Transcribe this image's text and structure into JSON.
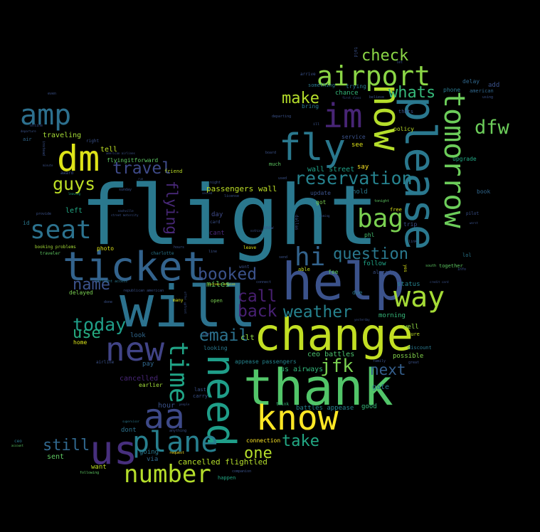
{
  "words": [
    {
      "text": "flight",
      "color": "#2a788e"
    },
    {
      "text": "will",
      "color": "#2c728e"
    },
    {
      "text": "thank",
      "color": "#52c569"
    },
    {
      "text": "change",
      "color": "#c2df23"
    },
    {
      "text": "help",
      "color": "#3b528b"
    },
    {
      "text": "ticket",
      "color": "#33638d"
    },
    {
      "text": "please",
      "color": "#2a788e"
    },
    {
      "text": "now",
      "color": "#b5de2b"
    },
    {
      "text": "need",
      "color": "#1f9e89"
    },
    {
      "text": "tomorrow",
      "color": "#6ccd5a"
    },
    {
      "text": "us",
      "color": "#472f7d"
    },
    {
      "text": "know",
      "color": "#fde725"
    },
    {
      "text": "aa",
      "color": "#3e4a89"
    },
    {
      "text": "new",
      "color": "#414487"
    },
    {
      "text": "dm",
      "color": "#dde318"
    },
    {
      "text": "fly",
      "color": "#2a788e"
    },
    {
      "text": "plane",
      "color": "#277f8e"
    },
    {
      "text": "number",
      "color": "#b5de2b"
    },
    {
      "text": "airport",
      "color": "#8bd646"
    },
    {
      "text": "im",
      "color": "#482576"
    },
    {
      "text": "amp",
      "color": "#2d708e"
    },
    {
      "text": "seat",
      "color": "#2c728e"
    },
    {
      "text": "time",
      "color": "#20a486"
    },
    {
      "text": "way",
      "color": "#a5db36"
    },
    {
      "text": "bag",
      "color": "#7ad151"
    },
    {
      "text": "hi",
      "color": "#33638d"
    },
    {
      "text": "reservation",
      "color": "#26828e"
    },
    {
      "text": "dfw",
      "color": "#6ccd5a"
    },
    {
      "text": "travel",
      "color": "#3e4a89"
    },
    {
      "text": "check",
      "color": "#8bd646"
    },
    {
      "text": "make",
      "color": "#b5de2b"
    },
    {
      "text": "whats",
      "color": "#35b779"
    },
    {
      "text": "guys",
      "color": "#bddf26"
    },
    {
      "text": "booked",
      "color": "#3b528b"
    },
    {
      "text": "question",
      "color": "#2a788e"
    },
    {
      "text": "name",
      "color": "#3b528b"
    },
    {
      "text": "today",
      "color": "#1f9e89"
    },
    {
      "text": "weather",
      "color": "#26828e"
    },
    {
      "text": "call",
      "color": "#481f70"
    },
    {
      "text": "back",
      "color": "#482173"
    },
    {
      "text": "email",
      "color": "#2c728e"
    },
    {
      "text": "jfk",
      "color": "#7ad151"
    },
    {
      "text": "next",
      "color": "#355f8d"
    },
    {
      "text": "use",
      "color": "#27ad81"
    },
    {
      "text": "still",
      "color": "#31688e"
    },
    {
      "text": "one",
      "color": "#b5de2b"
    },
    {
      "text": "take",
      "color": "#22a884"
    },
    {
      "text": "flying",
      "color": "#482878"
    },
    {
      "text": "passengers wall",
      "color": "#bddf26"
    },
    {
      "text": "wall street",
      "color": "#1fa187"
    },
    {
      "text": "cancelled flightled",
      "color": "#b5de2b"
    },
    {
      "text": "miles",
      "color": "#5ec962"
    },
    {
      "text": "clt",
      "color": "#90d743"
    },
    {
      "text": "us airways",
      "color": "#32b67a"
    },
    {
      "text": "ceo battles",
      "color": "#4ac16d"
    },
    {
      "text": "appease passengers",
      "color": "#25848e"
    },
    {
      "text": "battles appease",
      "color": "#26828e"
    },
    {
      "text": "cancelled",
      "color": "#482677"
    },
    {
      "text": "hour",
      "color": "#3b528b"
    },
    {
      "text": "pay",
      "color": "#31688e"
    },
    {
      "text": "left",
      "color": "#22a884"
    },
    {
      "text": "traveling",
      "color": "#a5db36"
    },
    {
      "text": "tell",
      "color": "#bddf26"
    },
    {
      "text": "flyingitforward",
      "color": "#5ec962"
    },
    {
      "text": "photo",
      "color": "#dde318"
    },
    {
      "text": "delayed",
      "color": "#7ad151"
    },
    {
      "text": "look",
      "color": "#31688e"
    },
    {
      "text": "home",
      "color": "#d8e219"
    },
    {
      "text": "earlier",
      "color": "#a0da39"
    },
    {
      "text": "dont",
      "color": "#2c728e"
    },
    {
      "text": "going",
      "color": "#2a788e"
    },
    {
      "text": "sent",
      "color": "#5ec962"
    },
    {
      "text": "want",
      "color": "#bddf26"
    },
    {
      "text": "via",
      "color": "#31688e"
    },
    {
      "text": "happen",
      "color": "#22a884"
    },
    {
      "text": "connection",
      "color": "#fde725"
    },
    {
      "text": "good",
      "color": "#35b779"
    },
    {
      "text": "gate",
      "color": "#2a788e"
    },
    {
      "text": "possible",
      "color": "#84d44b"
    },
    {
      "text": "sure",
      "color": "#bddf26"
    },
    {
      "text": "well",
      "color": "#90d743"
    },
    {
      "text": "morning",
      "color": "#35b779"
    },
    {
      "text": "due",
      "color": "#2a788e"
    },
    {
      "text": "status",
      "color": "#26828e"
    },
    {
      "text": "follow",
      "color": "#20a486"
    },
    {
      "text": "already",
      "color": "#3b528b"
    },
    {
      "text": "phl",
      "color": "#44bf70"
    },
    {
      "text": "free",
      "color": "#dde318"
    },
    {
      "text": "trip",
      "color": "#3b528b"
    },
    {
      "text": "hold",
      "color": "#2a788e"
    },
    {
      "text": "update",
      "color": "#3b528b"
    },
    {
      "text": "got",
      "color": "#7ad151"
    },
    {
      "text": "fee",
      "color": "#5ec962"
    },
    {
      "text": "able",
      "color": "#c2df23"
    },
    {
      "text": "policy",
      "color": "#bddf26"
    },
    {
      "text": "say",
      "color": "#fde725"
    },
    {
      "text": "see",
      "color": "#dde318"
    },
    {
      "text": "service",
      "color": "#3b528b"
    },
    {
      "text": "chance",
      "color": "#35b779"
    },
    {
      "text": "trying",
      "color": "#2a788e"
    },
    {
      "text": "something",
      "color": "#2a788e"
    },
    {
      "text": "bring",
      "color": "#2a788e"
    },
    {
      "text": "phone",
      "color": "#2a788e"
    },
    {
      "text": "delay",
      "color": "#31688e"
    },
    {
      "text": "add",
      "color": "#3b528b"
    },
    {
      "text": "american",
      "color": "#31688e"
    },
    {
      "text": "book",
      "color": "#31688e"
    },
    {
      "text": "upgrade",
      "color": "#22a884"
    },
    {
      "text": "together",
      "color": "#5ec962"
    },
    {
      "text": "discount",
      "color": "#2a788e"
    },
    {
      "text": "friend",
      "color": "#bddf26"
    },
    {
      "text": "night",
      "color": "#3b528b"
    },
    {
      "text": "license",
      "color": "#3b528b"
    },
    {
      "text": "day",
      "color": "#3e4a89"
    },
    {
      "text": "card",
      "color": "#3b528b"
    },
    {
      "text": "cant",
      "color": "#482878"
    },
    {
      "text": "open",
      "color": "#7ad151"
    },
    {
      "text": "looking",
      "color": "#2a788e"
    },
    {
      "text": "booking problems",
      "color": "#a5db36"
    },
    {
      "text": "traveler",
      "color": "#5ec962"
    },
    {
      "text": "inflight access",
      "color": "#2a788e"
    },
    {
      "text": "republican american",
      "color": "#3b528b"
    },
    {
      "text": "online",
      "color": "#3b528b"
    },
    {
      "text": "departure",
      "color": "#3b528b"
    },
    {
      "text": "air",
      "color": "#31688e"
    },
    {
      "text": "award",
      "color": "#3b528b"
    },
    {
      "text": "leaving",
      "color": "#22a884"
    },
    {
      "text": "provide",
      "color": "#3b528b"
    },
    {
      "text": "id",
      "color": "#2a788e"
    },
    {
      "text": "sunday",
      "color": "#3b528b"
    },
    {
      "text": "charlotte",
      "color": "#2a788e"
    },
    {
      "text": "leave",
      "color": "#dde318"
    },
    {
      "text": "much",
      "color": "#5ec962"
    },
    {
      "text": "departing",
      "color": "#3b528b"
    },
    {
      "text": "tonight",
      "color": "#5ec962"
    },
    {
      "text": "carry",
      "color": "#3b528b"
    },
    {
      "text": "last",
      "color": "#3b528b"
    },
    {
      "text": "airline",
      "color": "#3b528b"
    },
    {
      "text": "think",
      "color": "#35b779"
    },
    {
      "text": "supervisor",
      "color": "#2a788e"
    },
    {
      "text": "anything",
      "color": "#3b528b"
    },
    {
      "text": "request",
      "color": "#fde725"
    },
    {
      "text": "following",
      "color": "#5ec962"
    },
    {
      "text": "companion",
      "color": "#3b528b"
    },
    {
      "text": "ceo",
      "color": "#2a788e"
    },
    {
      "text": "account",
      "color": "#5ec962"
    },
    {
      "text": "customer service",
      "color": "#dde318"
    },
    {
      "text": "lol",
      "color": "#2a788e"
    },
    {
      "text": "info",
      "color": "#3b528b"
    },
    {
      "text": "credit card",
      "color": "#3b528b"
    },
    {
      "text": "south",
      "color": "#5ec962"
    },
    {
      "text": "yesterday",
      "color": "#3b528b"
    },
    {
      "text": "thats",
      "color": "#3b528b"
    },
    {
      "text": "believe",
      "color": "#3b528b"
    },
    {
      "text": "arrive",
      "color": "#3b528b"
    },
    {
      "text": "let",
      "color": "#3b528b"
    },
    {
      "text": "told",
      "color": "#3b528b"
    },
    {
      "text": "using",
      "color": "#3b528b"
    },
    {
      "text": "first class",
      "color": "#3b528b"
    },
    {
      "text": "instead",
      "color": "#3b528b"
    },
    {
      "text": "minute",
      "color": "#3b528b"
    },
    {
      "text": "right",
      "color": "#3b528b"
    },
    {
      "text": "even",
      "color": "#3b528b"
    },
    {
      "text": "board",
      "color": "#3b528b"
    },
    {
      "text": "used",
      "color": "#3b528b"
    },
    {
      "text": "pilot",
      "color": "#3b528b"
    },
    {
      "text": "dallas",
      "color": "#3b528b"
    },
    {
      "text": "people",
      "color": "#3b528b"
    },
    {
      "text": "send",
      "color": "#3b528b"
    },
    {
      "text": "great",
      "color": "#3b528b"
    },
    {
      "text": "family",
      "color": "#3b528b"
    },
    {
      "text": "sign",
      "color": "#3b528b"
    },
    {
      "text": "nashville",
      "color": "#3b528b"
    },
    {
      "text": "street motorcity",
      "color": "#3b528b"
    },
    {
      "text": "american airlines",
      "color": "#3b528b"
    },
    {
      "text": "snow",
      "color": "#3b528b"
    },
    {
      "text": "wont",
      "color": "#3b528b"
    },
    {
      "text": "link",
      "color": "#3b528b"
    },
    {
      "text": "connect",
      "color": "#3b528b"
    },
    {
      "text": "yes",
      "color": "#dde318"
    },
    {
      "text": "coming",
      "color": "#3b528b"
    },
    {
      "text": "line",
      "color": "#3b528b"
    },
    {
      "text": "done",
      "color": "#3b528b"
    },
    {
      "text": "many",
      "color": "#dde318"
    },
    {
      "text": "offer upfront",
      "color": "#3b528b"
    },
    {
      "text": "second",
      "color": "#3b528b"
    },
    {
      "text": "ill",
      "color": "#3b528b"
    },
    {
      "text": "run",
      "color": "#3b528b"
    },
    {
      "text": "hours",
      "color": "#3b528b"
    },
    {
      "text": "nothing",
      "color": "#3b528b"
    },
    {
      "text": "worst",
      "color": "#3b528b"
    }
  ]
}
